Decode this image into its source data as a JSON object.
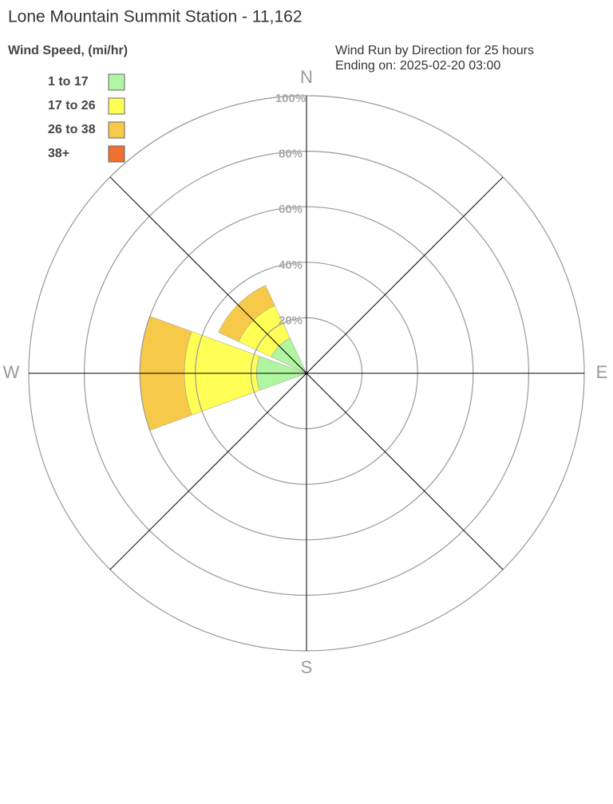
{
  "chart_data": {
    "type": "windrose",
    "title": "Lone Mountain Summit Station - 11,162",
    "legend_title": "Wind Speed, (mi/hr)",
    "subtitle": [
      "Wind Run by Direction for 25 hours",
      "Ending on: 2025-02-20 03:00"
    ],
    "categories": [
      "N",
      null,
      "E",
      null,
      "S",
      null,
      "W",
      null
    ],
    "series": [
      {
        "name": "1 to 17",
        "color": "#b0f5a0",
        "values": [
          0,
          0,
          0,
          0,
          0,
          0,
          18,
          14
        ]
      },
      {
        "name": "17 to 26",
        "color": "#ffff55",
        "values": [
          0,
          0,
          0,
          0,
          0,
          0,
          26,
          13
        ]
      },
      {
        "name": "26 to 38",
        "color": "#f7c948",
        "values": [
          0,
          0,
          0,
          0,
          0,
          0,
          16,
          8
        ]
      },
      {
        "name": "38+",
        "color": "#f07030",
        "values": [
          0,
          0,
          0,
          0,
          0,
          0,
          0,
          0
        ]
      }
    ],
    "rlim": [
      0,
      100
    ],
    "rticks": [
      {
        "value": 20,
        "label": "20%"
      },
      {
        "value": 40,
        "label": "40%"
      },
      {
        "value": 60,
        "label": "60%"
      },
      {
        "value": 80,
        "label": "80%"
      },
      {
        "value": 100,
        "label": "100%"
      }
    ],
    "grid": true
  }
}
